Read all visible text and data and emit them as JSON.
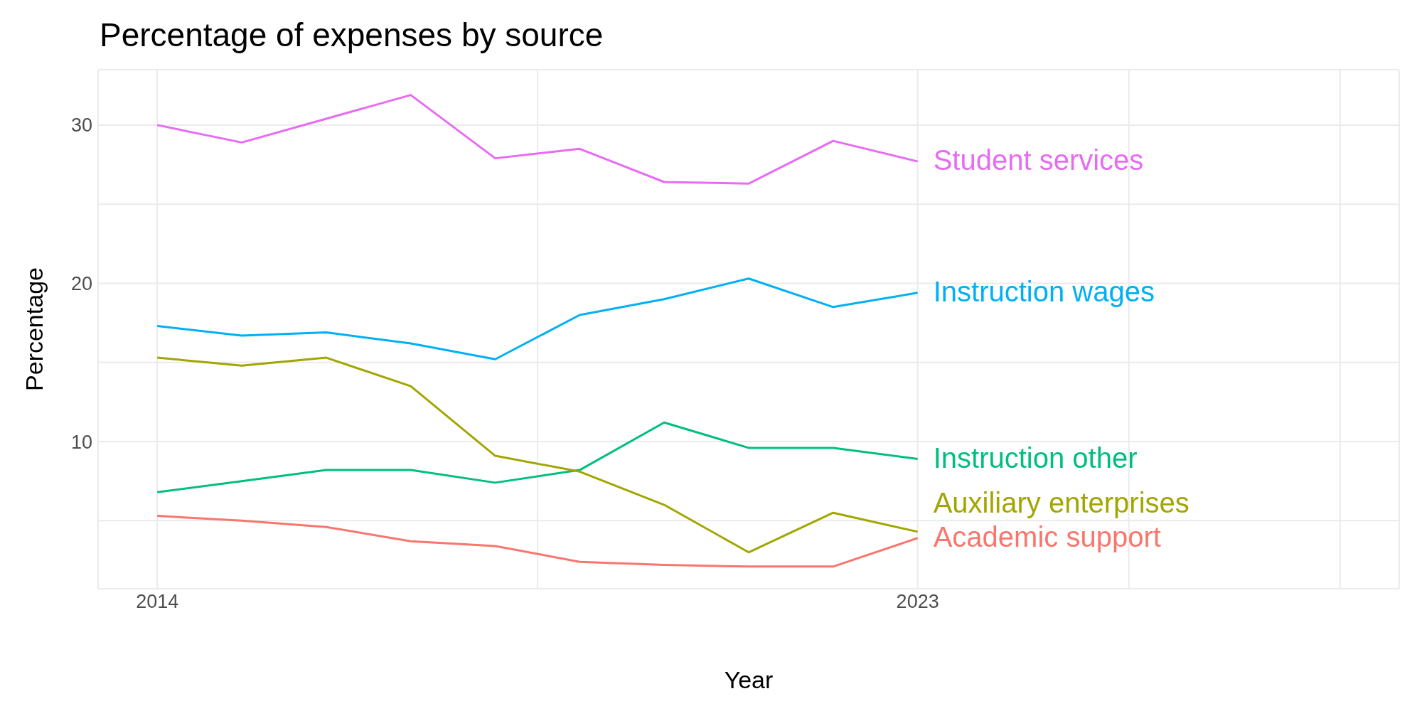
{
  "chart_data": {
    "type": "line",
    "title": "Percentage of expenses by source",
    "xlabel": "Year",
    "ylabel": "Percentage",
    "x": [
      2014,
      2015,
      2016,
      2017,
      2018,
      2019,
      2020,
      2021,
      2022,
      2023
    ],
    "series": [
      {
        "name": "Student services",
        "color": "#e76bf3",
        "values": [
          30.0,
          28.9,
          30.4,
          31.9,
          27.9,
          28.5,
          26.4,
          26.3,
          29.0,
          27.7
        ]
      },
      {
        "name": "Instruction wages",
        "color": "#00b0f6",
        "values": [
          17.3,
          16.7,
          16.9,
          16.2,
          15.2,
          18.0,
          19.0,
          20.3,
          18.5,
          19.4
        ]
      },
      {
        "name": "Instruction other",
        "color": "#00bf7d",
        "values": [
          6.8,
          7.5,
          8.2,
          8.2,
          7.4,
          8.2,
          11.2,
          9.6,
          9.6,
          8.9
        ]
      },
      {
        "name": "Auxiliary enterprises",
        "color": "#a3a500",
        "values": [
          15.3,
          14.8,
          15.3,
          13.5,
          9.1,
          8.1,
          6.0,
          3.0,
          5.5,
          4.3
        ]
      },
      {
        "name": "Academic support",
        "color": "#f8766d",
        "values": [
          5.3,
          5.0,
          4.6,
          3.7,
          3.4,
          2.4,
          2.2,
          2.1,
          2.1,
          3.9
        ]
      }
    ],
    "xlim": [
      2013.3,
      2028.7
    ],
    "xticks": [
      2014,
      {
        "value": 2018.5,
        "label": null
      },
      2023,
      {
        "value": 2025.5,
        "label": null
      },
      {
        "value": 2028,
        "label": null
      }
    ],
    "ylim": [
      0.7,
      33.5
    ],
    "yticks": [
      {
        "value": 5,
        "label": null
      },
      10,
      {
        "value": 15,
        "label": null
      },
      20,
      {
        "value": 25,
        "label": null
      },
      30
    ],
    "grid": true,
    "legend": false,
    "marker": "none",
    "line_style": "solid"
  }
}
